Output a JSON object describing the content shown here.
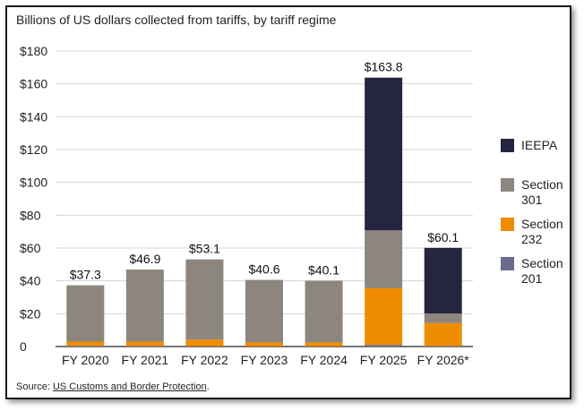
{
  "chart_data": {
    "type": "bar",
    "stacked": true,
    "title": "Billions of US dollars collected from tariffs, by tariff regime",
    "xlabel": "",
    "ylabel": "",
    "ylim": [
      0,
      180
    ],
    "yticks": [
      0,
      20,
      40,
      60,
      80,
      100,
      120,
      140,
      160,
      180
    ],
    "yticklabels": [
      "0",
      "$20",
      "$40",
      "$60",
      "$80",
      "$100",
      "$120",
      "$140",
      "$160",
      "$180"
    ],
    "categories": [
      "FY 2020",
      "FY 2021",
      "FY 2022",
      "FY 2023",
      "FY 2024",
      "FY 2025",
      "FY 2026*"
    ],
    "totals": [
      37.3,
      46.9,
      53.1,
      40.6,
      40.1,
      163.8,
      60.1
    ],
    "total_labels": [
      "$37.3",
      "$46.9",
      "$53.1",
      "$40.6",
      "$40.1",
      "$163.8",
      "$60.1"
    ],
    "series": [
      {
        "name": "Section 201",
        "color": "#6b6b8c",
        "values": [
          0.4,
          0.3,
          0.2,
          0.1,
          0.1,
          1.0,
          0.3
        ]
      },
      {
        "name": "Section 232",
        "color": "#f08c00",
        "values": [
          2.6,
          2.7,
          4.0,
          2.4,
          2.4,
          34.5,
          14.0
        ]
      },
      {
        "name": "Section 301",
        "color": "#8c867e",
        "values": [
          34.3,
          43.9,
          48.9,
          38.1,
          37.6,
          35.3,
          5.8
        ]
      },
      {
        "name": "IEEPA",
        "color": "#252540",
        "values": [
          0,
          0,
          0,
          0,
          0,
          93.0,
          40.0
        ]
      }
    ],
    "legend": {
      "placement": "right",
      "items": [
        {
          "lines": [
            "IEEPA"
          ],
          "color": "#252540"
        },
        {
          "lines": [
            "Section",
            "301"
          ],
          "color": "#8c867e"
        },
        {
          "lines": [
            "Section",
            "232"
          ],
          "color": "#f08c00"
        },
        {
          "lines": [
            "Section",
            "201"
          ],
          "color": "#6b6b8c"
        }
      ]
    },
    "grid": true
  },
  "source": {
    "prefix": "Source: ",
    "link_text": "US Customs and Border Protection",
    "suffix": "."
  }
}
